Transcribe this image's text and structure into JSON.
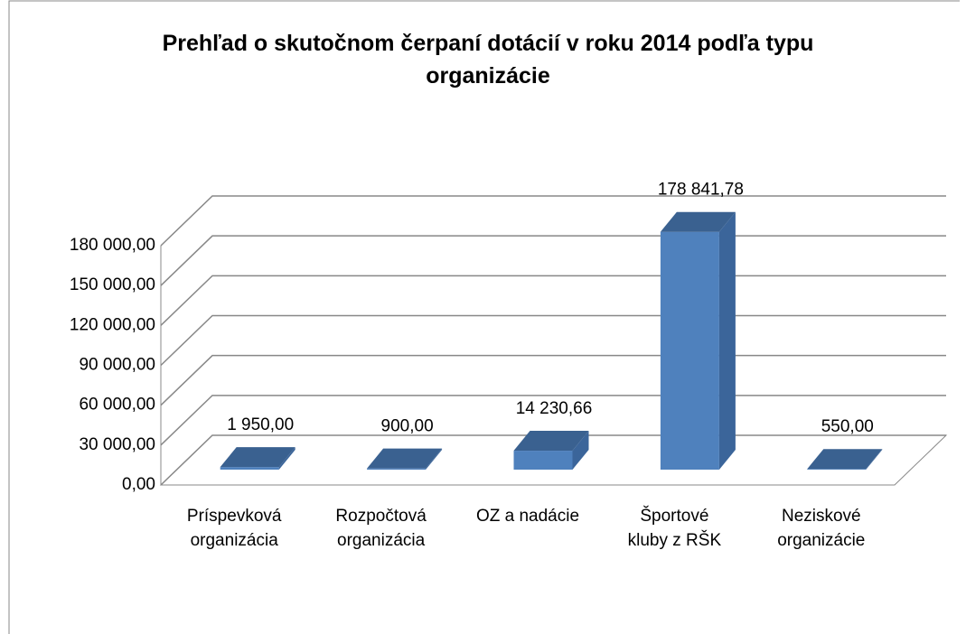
{
  "chart_data": {
    "type": "bar3d",
    "title": "Prehľad o skutočnom čerpaní dotácií v roku 2014 podľa typu organizácie",
    "categories": [
      "Príspevková organizácia",
      "Rozpočtová organizácia",
      "OZ a nadácie",
      "Športové kluby z RŠK",
      "Neziskové organizácie"
    ],
    "values": [
      1950,
      900,
      14230.66,
      178841.78,
      550
    ],
    "value_labels": [
      "1 950,00",
      "900,00",
      "14 230,66",
      "178 841,78",
      "550,00"
    ],
    "color": "#4f81bd",
    "ylim": [
      0,
      180000
    ],
    "yticks": [
      {
        "value": 0,
        "label": "0,00"
      },
      {
        "value": 30000,
        "label": "30 000,00"
      },
      {
        "value": 60000,
        "label": "60 000,00"
      },
      {
        "value": 90000,
        "label": "90 000,00"
      },
      {
        "value": 120000,
        "label": "120 000,00"
      },
      {
        "value": 150000,
        "label": "150 000,00"
      },
      {
        "value": 180000,
        "label": "180 000,00"
      }
    ],
    "grid": true
  }
}
